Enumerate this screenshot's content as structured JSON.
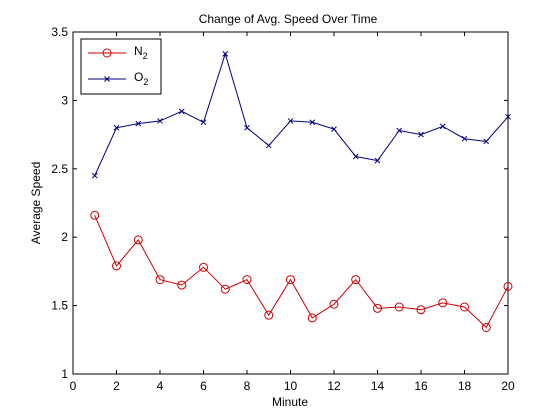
{
  "chart_data": {
    "type": "line",
    "title": "Change of Avg. Speed Over Time",
    "xlabel": "Minute",
    "ylabel": "Average Speed",
    "xlim": [
      0,
      20
    ],
    "ylim": [
      1,
      3.5
    ],
    "xticks": [
      0,
      2,
      4,
      6,
      8,
      10,
      12,
      14,
      16,
      18,
      20
    ],
    "yticks": [
      1,
      1.5,
      2,
      2.5,
      3,
      3.5
    ],
    "grid": false,
    "legend_position": "top-left",
    "x": [
      1,
      2,
      3,
      4,
      5,
      6,
      7,
      8,
      9,
      10,
      11,
      12,
      13,
      14,
      15,
      16,
      17,
      18,
      19,
      20
    ],
    "series": [
      {
        "name": "N",
        "name_subscript": "2",
        "color": "#cc0000",
        "marker": "circle",
        "values": [
          2.16,
          1.79,
          1.98,
          1.69,
          1.65,
          1.78,
          1.62,
          1.69,
          1.43,
          1.69,
          1.41,
          1.51,
          1.69,
          1.48,
          1.49,
          1.47,
          1.52,
          1.49,
          1.34,
          1.64
        ]
      },
      {
        "name": "O",
        "name_subscript": "2",
        "color": "#000080",
        "marker": "x",
        "values": [
          2.45,
          2.8,
          2.83,
          2.85,
          2.92,
          2.84,
          3.34,
          2.8,
          2.67,
          2.85,
          2.84,
          2.79,
          2.59,
          2.56,
          2.78,
          2.75,
          2.81,
          2.72,
          2.7,
          2.88
        ]
      }
    ]
  }
}
